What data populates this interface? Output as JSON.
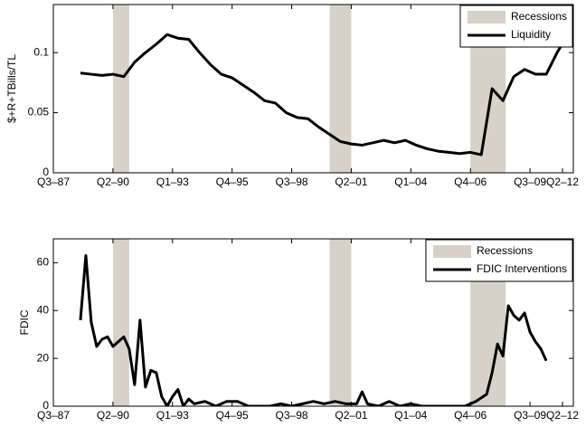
{
  "chart_data": [
    {
      "type": "line",
      "ylabel": "$+R+TBills/TL",
      "xlim": [
        1987.5,
        2011.5
      ],
      "ylim": [
        0,
        0.14
      ],
      "xticks": [
        {
          "value": 1987.5,
          "label": "Q3–87"
        },
        {
          "value": 1990.25,
          "label": "Q2–90"
        },
        {
          "value": 1993.0,
          "label": "Q1–93"
        },
        {
          "value": 1995.75,
          "label": "Q4–95"
        },
        {
          "value": 1998.5,
          "label": "Q3–98"
        },
        {
          "value": 2001.25,
          "label": "Q2–01"
        },
        {
          "value": 2004.0,
          "label": "Q1–04"
        },
        {
          "value": 2006.75,
          "label": "Q4–06"
        },
        {
          "value": 2009.5,
          "label": "Q3–09"
        },
        {
          "value": 2011.0,
          "label": "Q2–12"
        }
      ],
      "yticks": [
        0,
        0.05,
        0.1
      ],
      "legend": "upper right",
      "series": [
        {
          "name": "Recessions",
          "color": "#d6d2c9",
          "ranges": [
            [
              1990.25,
              1991.0
            ],
            [
              2000.25,
              2001.25
            ],
            [
              2006.75,
              2008.375
            ]
          ]
        },
        {
          "name": "Liquidity",
          "color": "#000000",
          "x": [
            1988.75,
            1989.25,
            1989.75,
            1990.25,
            1990.75,
            1991.25,
            1991.75,
            1992.25,
            1992.75,
            1993.25,
            1993.75,
            1994.25,
            1994.75,
            1995.25,
            1995.75,
            1996.25,
            1996.75,
            1997.25,
            1997.75,
            1998.25,
            1998.75,
            1999.25,
            1999.75,
            2000.25,
            2000.75,
            2001.25,
            2001.75,
            2002.25,
            2002.75,
            2003.25,
            2003.75,
            2004.25,
            2004.75,
            2005.25,
            2005.75,
            2006.25,
            2006.75,
            2007.25,
            2007.75,
            2008.25,
            2008.75,
            2009.25,
            2009.75,
            2010.25,
            2010.75,
            2011.25
          ],
          "values": [
            0.083,
            0.082,
            0.081,
            0.082,
            0.08,
            0.092,
            0.1,
            0.107,
            0.115,
            0.112,
            0.111,
            0.1,
            0.09,
            0.082,
            0.079,
            0.073,
            0.067,
            0.06,
            0.058,
            0.05,
            0.046,
            0.045,
            0.038,
            0.032,
            0.026,
            0.024,
            0.023,
            0.025,
            0.027,
            0.025,
            0.027,
            0.023,
            0.02,
            0.018,
            0.017,
            0.016,
            0.017,
            0.015,
            0.07,
            0.06,
            0.08,
            0.086,
            0.082,
            0.082,
            0.1,
            0.115
          ]
        }
      ]
    },
    {
      "type": "line",
      "ylabel": "FDIC",
      "xlim": [
        1987.5,
        2011.5
      ],
      "ylim": [
        0,
        70
      ],
      "xticks": [
        {
          "value": 1987.5,
          "label": "Q3–87"
        },
        {
          "value": 1990.25,
          "label": "Q2–90"
        },
        {
          "value": 1993.0,
          "label": "Q1–93"
        },
        {
          "value": 1995.75,
          "label": "Q4–95"
        },
        {
          "value": 1998.5,
          "label": "Q3–98"
        },
        {
          "value": 2001.25,
          "label": "Q2–01"
        },
        {
          "value": 2004.0,
          "label": "Q1–04"
        },
        {
          "value": 2006.75,
          "label": "Q4–06"
        },
        {
          "value": 2009.5,
          "label": "Q3–09"
        },
        {
          "value": 2011.0,
          "label": "Q2–12"
        }
      ],
      "yticks": [
        0,
        20,
        40,
        60
      ],
      "legend": "upper right",
      "series": [
        {
          "name": "Recessions",
          "color": "#d6d2c9",
          "ranges": [
            [
              1990.25,
              1991.0
            ],
            [
              2000.25,
              2001.25
            ],
            [
              2006.75,
              2008.375
            ]
          ]
        },
        {
          "name": "FDIC Interventions",
          "color": "#000000",
          "x": [
            1988.75,
            1989.0,
            1989.25,
            1989.5,
            1989.75,
            1990.0,
            1990.25,
            1990.5,
            1990.75,
            1991.0,
            1991.25,
            1991.5,
            1991.75,
            1992.0,
            1992.25,
            1992.5,
            1992.75,
            1993.0,
            1993.25,
            1993.5,
            1993.75,
            1994.0,
            1994.5,
            1995.0,
            1995.5,
            1996.0,
            1996.5,
            1997.5,
            1998.0,
            1998.5,
            1999.0,
            1999.5,
            2000.0,
            2000.5,
            2001.0,
            2001.5,
            2001.75,
            2002.0,
            2002.5,
            2003.0,
            2003.5,
            2004.0,
            2004.5,
            2005.5,
            2006.5,
            2007.0,
            2007.5,
            2007.75,
            2008.0,
            2008.25,
            2008.5,
            2008.75,
            2009.0,
            2009.25,
            2009.5,
            2009.75,
            2010.0,
            2010.25
          ],
          "values": [
            36,
            63,
            35,
            25,
            28,
            29,
            25,
            27,
            29,
            24,
            9,
            36,
            8,
            15,
            14,
            4,
            0,
            4,
            7,
            0,
            3,
            1,
            2,
            0,
            2,
            2,
            0,
            0,
            1,
            0,
            1,
            2,
            1,
            2,
            1,
            1,
            6,
            1,
            0,
            2,
            0,
            1,
            0,
            0,
            0,
            2,
            5,
            14,
            26,
            21,
            42,
            38,
            36,
            39,
            31,
            27,
            24,
            19
          ]
        }
      ]
    }
  ]
}
